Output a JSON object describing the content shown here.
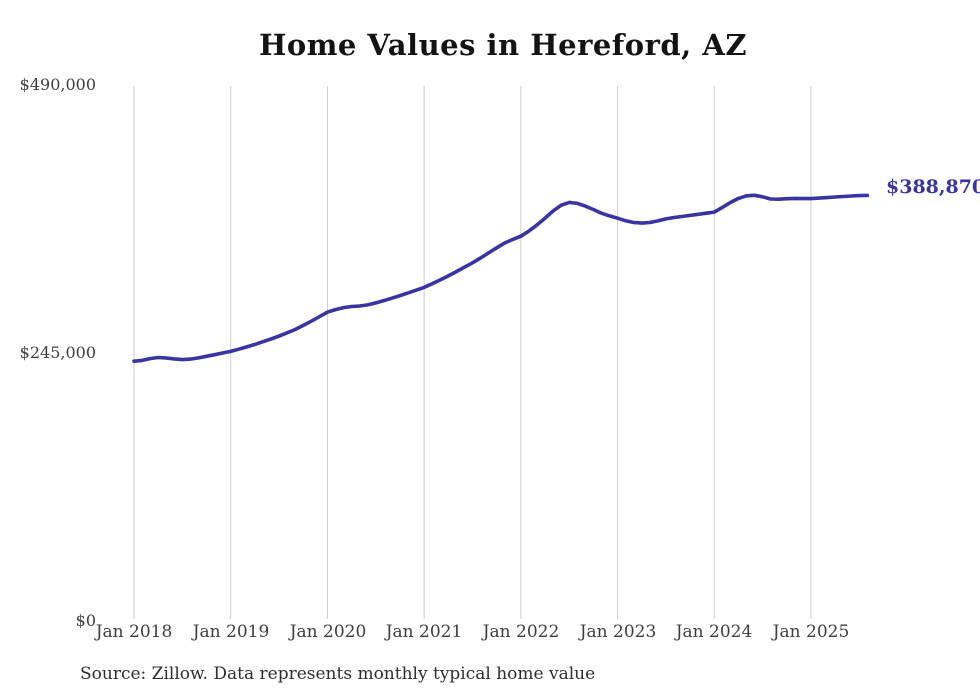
{
  "chart_data": {
    "type": "line",
    "title": "Home Values in Hereford, AZ",
    "source_note": "Source: Zillow. Data represents monthly typical home value",
    "annotation_label": "$388,870",
    "latest_value": 388870,
    "series_name": "Monthly typical home value",
    "line_color": "#3a34a3",
    "grid_color": "#cccccc",
    "axis_text_color": "#3f3f3f",
    "grid": "vertical-only",
    "legend_position": "none",
    "ylim": [
      0,
      490000
    ],
    "y_ticks": [
      {
        "label": "$0",
        "value": 0
      },
      {
        "label": "$245,000",
        "value": 245000
      },
      {
        "label": "$490,000",
        "value": 490000
      }
    ],
    "x_tick_labels": [
      "Jan 2018",
      "Jan 2019",
      "Jan 2020",
      "Jan 2021",
      "Jan 2022",
      "Jan 2023",
      "Jan 2024",
      "Jan 2025"
    ],
    "x_tick_month_indices": [
      0,
      12,
      24,
      36,
      48,
      60,
      72,
      84
    ],
    "x": [
      "2018-01",
      "2018-02",
      "2018-03",
      "2018-04",
      "2018-05",
      "2018-06",
      "2018-07",
      "2018-08",
      "2018-09",
      "2018-10",
      "2018-11",
      "2018-12",
      "2019-01",
      "2019-02",
      "2019-03",
      "2019-04",
      "2019-05",
      "2019-06",
      "2019-07",
      "2019-08",
      "2019-09",
      "2019-10",
      "2019-11",
      "2019-12",
      "2020-01",
      "2020-02",
      "2020-03",
      "2020-04",
      "2020-05",
      "2020-06",
      "2020-07",
      "2020-08",
      "2020-09",
      "2020-10",
      "2020-11",
      "2020-12",
      "2021-01",
      "2021-02",
      "2021-03",
      "2021-04",
      "2021-05",
      "2021-06",
      "2021-07",
      "2021-08",
      "2021-09",
      "2021-10",
      "2021-11",
      "2021-12",
      "2022-01",
      "2022-02",
      "2022-03",
      "2022-04",
      "2022-05",
      "2022-06",
      "2022-07",
      "2022-08",
      "2022-09",
      "2022-10",
      "2022-11",
      "2022-12",
      "2023-01",
      "2023-02",
      "2023-03",
      "2023-04",
      "2023-05",
      "2023-06",
      "2023-07",
      "2023-08",
      "2023-09",
      "2023-10",
      "2023-11",
      "2023-12",
      "2024-01",
      "2024-02",
      "2024-03",
      "2024-04",
      "2024-05",
      "2024-06",
      "2024-07",
      "2024-08",
      "2024-09",
      "2024-10",
      "2024-11",
      "2024-12",
      "2025-01",
      "2025-02",
      "2025-03",
      "2025-04",
      "2025-05",
      "2025-06",
      "2025-07",
      "2025-08"
    ],
    "values": [
      237000,
      237800,
      239400,
      240400,
      240000,
      239100,
      238500,
      239000,
      240100,
      241500,
      243000,
      244500,
      246000,
      248000,
      250100,
      252400,
      254900,
      257400,
      260000,
      263000,
      266100,
      269800,
      273700,
      277800,
      281900,
      284300,
      286100,
      287100,
      287600,
      288600,
      290400,
      292500,
      294700,
      297100,
      299600,
      302100,
      304600,
      308000,
      311500,
      315200,
      319100,
      323100,
      327200,
      331600,
      336200,
      340900,
      345300,
      348600,
      351500,
      356200,
      361900,
      368000,
      374600,
      379900,
      382500,
      381600,
      379100,
      376000,
      372600,
      370100,
      368000,
      365600,
      364100,
      363500,
      364100,
      365500,
      367400,
      368600,
      369600,
      370600,
      371600,
      372600,
      373600,
      377900,
      382400,
      386100,
      388500,
      389000,
      387600,
      385600,
      385400,
      385900,
      386100,
      386000,
      386000,
      386400,
      386900,
      387400,
      387900,
      388300,
      388700,
      388870
    ]
  }
}
